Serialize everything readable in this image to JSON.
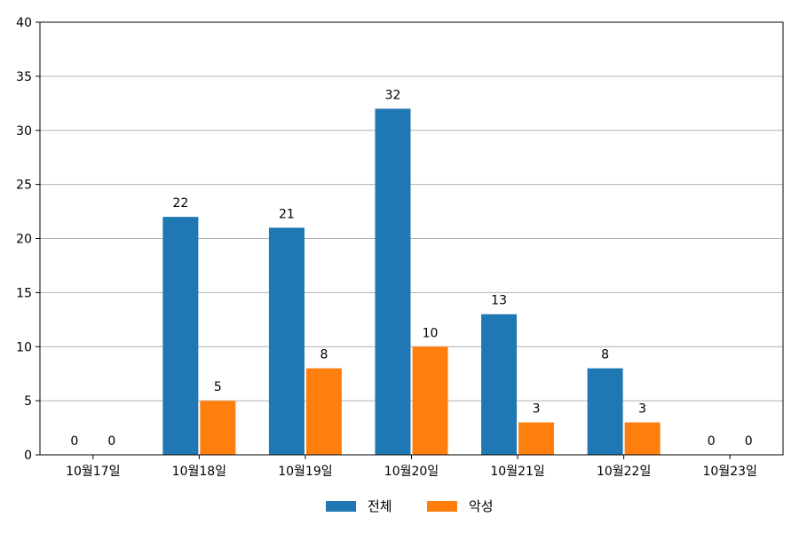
{
  "chart_data": {
    "type": "bar",
    "categories": [
      "10월17일",
      "10월18일",
      "10월19일",
      "10월20일",
      "10월21일",
      "10월22일",
      "10월23일"
    ],
    "series": [
      {
        "name": "전체",
        "values": [
          0,
          22,
          21,
          32,
          13,
          8,
          0
        ],
        "color": "#1f77b4"
      },
      {
        "name": "악성",
        "values": [
          0,
          5,
          8,
          10,
          3,
          3,
          0
        ],
        "color": "#ff7f0e"
      }
    ],
    "yticks": [
      0,
      5,
      10,
      15,
      20,
      25,
      30,
      35,
      40
    ],
    "ylim": [
      0,
      40
    ],
    "grid": "horizontal",
    "legend": "bottom-center"
  }
}
